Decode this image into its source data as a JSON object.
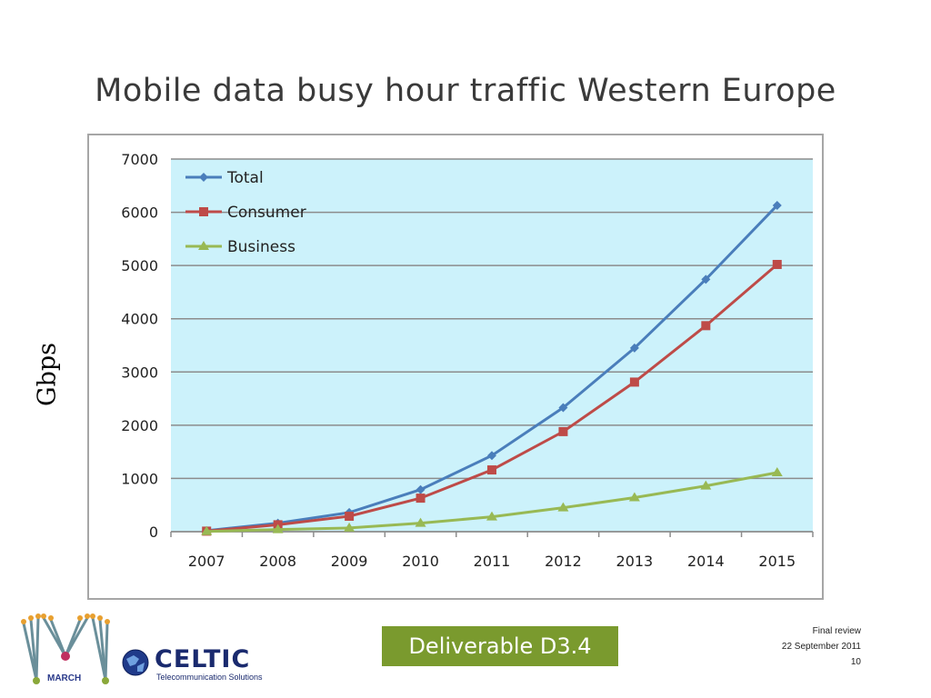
{
  "slide": {
    "title": "Mobile data busy hour traffic Western Europe",
    "y_axis_label": "Gbps"
  },
  "footer": {
    "deliverable": "Deliverable D3.4",
    "review": "Final review",
    "date": "22 September 2011",
    "page": "10"
  },
  "logos": {
    "march_label": "MARCH",
    "celtic_name": "CELTIC",
    "celtic_sub": "Telecommunication Solutions"
  },
  "colors": {
    "plot_background": "#ccf2fb",
    "total": "#4a7ebb",
    "consumer": "#be4b48",
    "business": "#98b954",
    "grid": "#8c8c8c",
    "footer_box": "#7a9a2e"
  },
  "chart_data": {
    "type": "line",
    "x": [
      "2007",
      "2008",
      "2009",
      "2010",
      "2011",
      "2012",
      "2013",
      "2014",
      "2015"
    ],
    "ylim": [
      0,
      7000
    ],
    "yticks": [
      0,
      1000,
      2000,
      3000,
      4000,
      5000,
      6000,
      7000
    ],
    "grid": true,
    "legend_position": "top-left",
    "series": [
      {
        "name": "Total",
        "marker": "diamond",
        "values": [
          20,
          160,
          360,
          790,
          1430,
          2330,
          3450,
          4740,
          6130
        ]
      },
      {
        "name": "Consumer",
        "marker": "square",
        "values": [
          10,
          130,
          290,
          630,
          1160,
          1880,
          2810,
          3870,
          5020
        ]
      },
      {
        "name": "Business",
        "marker": "triangle",
        "values": [
          5,
          40,
          70,
          160,
          280,
          450,
          640,
          860,
          1110
        ]
      }
    ]
  }
}
